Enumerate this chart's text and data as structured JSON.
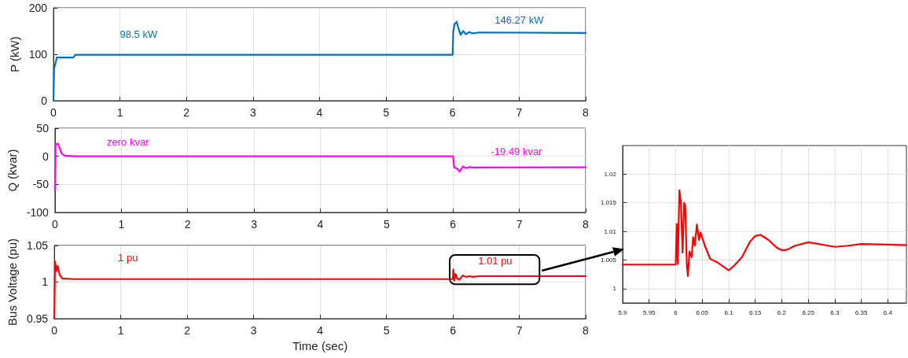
{
  "chart_data": [
    {
      "type": "line",
      "ylabel": "P (kW)",
      "xlim": [
        0,
        8
      ],
      "xticks": [
        0,
        1,
        2,
        3,
        4,
        5,
        6,
        7,
        8
      ],
      "ylim": [
        0,
        200
      ],
      "yticks": [
        0,
        100,
        200
      ],
      "grid": true,
      "marker": "none",
      "line_style": "solid",
      "series": [
        {
          "color": "#0072bd",
          "x": [
            0,
            0.01,
            0.02,
            0.03,
            0.05,
            0.3,
            0.33,
            6.0,
            6.01,
            6.03,
            6.06,
            6.09,
            6.12,
            6.16,
            6.2,
            6.25,
            6.3,
            6.4,
            8
          ],
          "values": [
            0,
            70,
            75,
            80,
            93,
            93,
            99,
            99,
            150,
            165,
            170,
            155,
            142,
            150,
            143,
            148,
            145,
            147,
            146
          ]
        }
      ],
      "annotations": [
        "98.5 kW",
        "146.27 kW"
      ]
    },
    {
      "type": "line",
      "ylabel": "Q (kvar)",
      "xlim": [
        0,
        8
      ],
      "xticks": [
        0,
        1,
        2,
        3,
        4,
        5,
        6,
        7,
        8
      ],
      "ylim": [
        -100,
        50
      ],
      "yticks": [
        -100,
        -50,
        0,
        50
      ],
      "grid": true,
      "marker": "none",
      "line_style": "solid",
      "series": [
        {
          "color": "#ff00ff",
          "x": [
            0,
            0.01,
            0.04,
            0.07,
            0.1,
            0.15,
            0.3,
            6.0,
            6.02,
            6.06,
            6.1,
            6.15,
            6.2,
            6.25,
            6.3,
            8
          ],
          "values": [
            -60,
            20,
            23,
            15,
            5,
            1,
            0,
            0,
            -20,
            -22,
            -27,
            -18,
            -21,
            -19,
            -20,
            -19.5
          ]
        }
      ],
      "annotations": [
        "zero kvar",
        "-19.49 kvar"
      ]
    },
    {
      "type": "line",
      "ylabel": "Bus Voltage (pu)",
      "xlabel": "Time (sec)",
      "xlim": [
        0,
        8
      ],
      "xticks": [
        0,
        1,
        2,
        3,
        4,
        5,
        6,
        7,
        8
      ],
      "ylim": [
        0.95,
        1.05
      ],
      "yticks": [
        0.95,
        1,
        1.05
      ],
      "grid": true,
      "marker": "none",
      "line_style": "solid",
      "series": [
        {
          "color": "#ff0000",
          "x": [
            0,
            0.01,
            0.03,
            0.05,
            0.08,
            0.12,
            0.3,
            6.0,
            6.007,
            6.021,
            6.023,
            6.04,
            6.065,
            6.1,
            6.15,
            6.2,
            6.25,
            6.3,
            6.4,
            8
          ],
          "values": [
            0.95,
            1.028,
            1.015,
            1.022,
            1.01,
            1.005,
            1.004,
            1.004,
            1.017,
            1.004,
            1.002,
            1.011,
            1.005,
            1.003,
            1.009,
            1.007,
            1.008,
            1.007,
            1.008,
            1.008
          ]
        }
      ],
      "annotations": [
        "1 pu",
        "1.01 pu"
      ]
    },
    {
      "type": "line",
      "xlim": [
        5.9,
        6.435
      ],
      "xticks": [
        5.9,
        5.95,
        6,
        6.05,
        6.1,
        6.15,
        6.2,
        6.25,
        6.3,
        6.35,
        6.4
      ],
      "ylim": [
        0.9975,
        1.025
      ],
      "yticks": [
        1,
        1.005,
        1.01,
        1.015,
        1.02
      ],
      "grid": true,
      "marker": "none",
      "line_style": "solid",
      "series": [
        {
          "color": "#ff0000",
          "x": [
            5.9,
            6.0,
            6.002,
            6.004,
            6.007,
            6.01,
            6.013,
            6.016,
            6.018,
            6.021,
            6.023,
            6.026,
            6.03,
            6.033,
            6.036,
            6.04,
            6.044,
            6.047,
            6.055,
            6.065,
            6.08,
            6.1,
            6.11,
            6.125,
            6.14,
            6.15,
            6.16,
            6.175,
            6.19,
            6.2,
            6.21,
            6.225,
            6.25,
            6.27,
            6.3,
            6.325,
            6.35,
            6.4,
            6.435
          ],
          "values": [
            1.0042,
            1.0042,
            1.0113,
            1.0043,
            1.0172,
            1.015,
            1.0063,
            1.015,
            1.0145,
            1.0043,
            1.0022,
            1.0065,
            1.0055,
            1.009,
            1.0075,
            1.0112,
            1.0085,
            1.0098,
            1.0075,
            1.0052,
            1.0045,
            1.0032,
            1.004,
            1.0055,
            1.0082,
            1.0092,
            1.0094,
            1.0085,
            1.0072,
            1.0067,
            1.0068,
            1.0075,
            1.0081,
            1.0078,
            1.0073,
            1.0075,
            1.0078,
            1.0077,
            1.0076
          ]
        }
      ]
    }
  ]
}
